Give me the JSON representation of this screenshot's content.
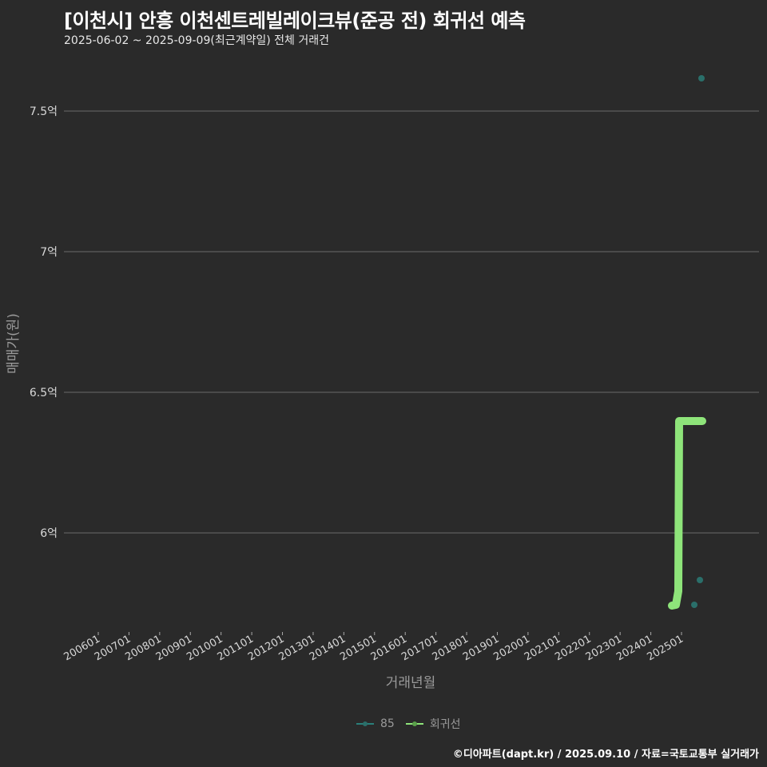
{
  "title": "[이천시] 안흥 이천센트레빌레이크뷰(준공 전) 회귀선 예측",
  "subtitle": "2025-06-02 ~ 2025-09-09(최근계약일) 전체 거래건",
  "caption": "©디아파트(dapt.kr) / 2025.09.10 / 자료=국토교통부 실거래가",
  "legend": [
    {
      "label": "85",
      "color": "#2a7f7a"
    },
    {
      "label": "회귀선",
      "color": "#8ee47a"
    }
  ],
  "chart_data": {
    "type": "scatter",
    "title": "[이천시] 안흥 이천센트레빌레이크뷰(준공 전) 회귀선 예측",
    "subtitle": "2025-06-02 ~ 2025-09-09(최근계약일) 전체 거래건",
    "xlabel": "거래년월",
    "ylabel": "매매가(원)",
    "x_ticks": [
      "200601",
      "200701",
      "200801",
      "200901",
      "201001",
      "201101",
      "201201",
      "201301",
      "201401",
      "201501",
      "201601",
      "201701",
      "201801",
      "201901",
      "202001",
      "202101",
      "202201",
      "202301",
      "202401",
      "202501"
    ],
    "y_ticks": [
      "6억",
      "6.5억",
      "7억",
      "7.5억"
    ],
    "y_tick_values": [
      6.0,
      6.5,
      7.0,
      7.5
    ],
    "ylim": [
      5.65,
      7.72
    ],
    "grid": "horizontal",
    "legend_position": "bottom",
    "series": [
      {
        "name": "85",
        "type": "scatter",
        "color": "#2a6f6a",
        "points": [
          {
            "x": "2025-06",
            "y": 5.75
          },
          {
            "x": "2025-08",
            "y": 5.83
          },
          {
            "x": "2025-09",
            "y": 7.62
          }
        ]
      },
      {
        "name": "회귀선",
        "type": "line",
        "color": "#8ee47a",
        "points": [
          {
            "x": "2024-11",
            "y": 5.74
          },
          {
            "x": "2024-12",
            "y": 5.74
          },
          {
            "x": "2025-01",
            "y": 5.79
          },
          {
            "x": "2025-01",
            "y": 6.4
          },
          {
            "x": "2025-09",
            "y": 6.4
          }
        ]
      }
    ]
  }
}
